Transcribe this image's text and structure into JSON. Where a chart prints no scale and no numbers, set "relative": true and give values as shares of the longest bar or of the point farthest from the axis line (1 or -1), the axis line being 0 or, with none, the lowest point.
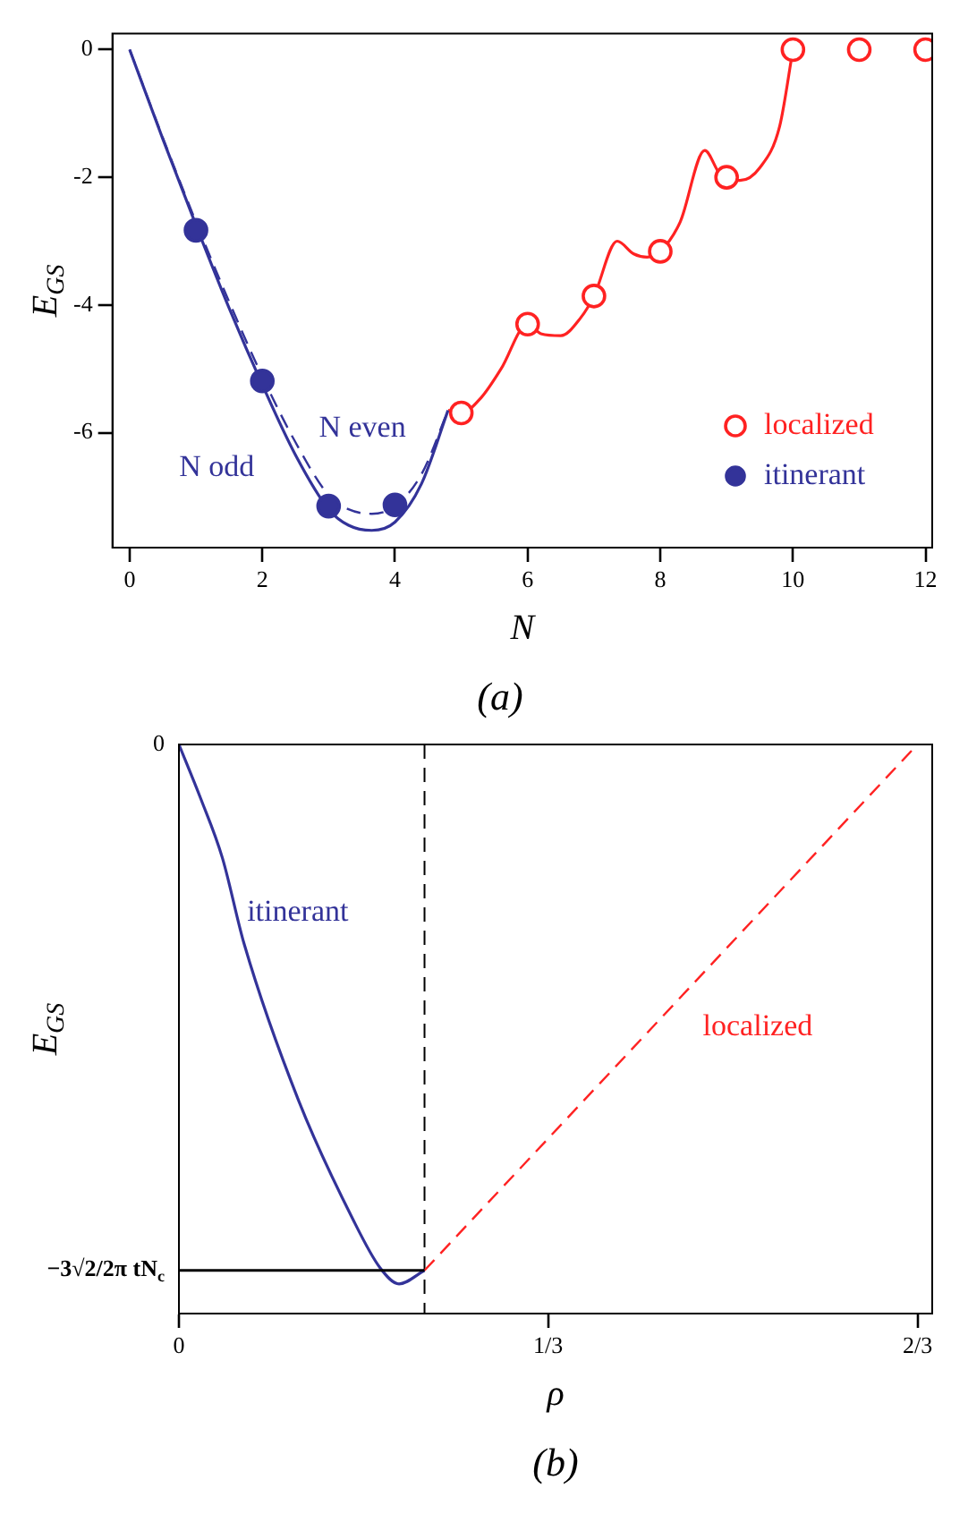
{
  "chart_data": [
    {
      "type": "scatter",
      "title": "(a)",
      "xlabel": "N",
      "ylabel": "E$_{GS}$",
      "xlim": [
        -0.26,
        12.1
      ],
      "ylim": [
        -7.8,
        0.25
      ],
      "xticks": [
        0,
        2,
        4,
        6,
        8,
        10,
        12
      ],
      "yticks": [
        -6,
        -4,
        -2,
        0
      ],
      "grid": false,
      "legend": "bottom right",
      "series": [
        {
          "name": "N odd",
          "type": "line",
          "color": "#333399",
          "marker": "none",
          "line_style": "solid",
          "x": [
            0,
            0.5,
            1,
            1.5,
            2,
            2.5,
            3,
            3.3,
            3.65,
            4,
            4.4,
            4.8
          ],
          "values": [
            0,
            -1.4,
            -2.75,
            -4.05,
            -5.25,
            -6.35,
            -7.2,
            -7.45,
            -7.53,
            -7.4,
            -6.8,
            -5.65
          ]
        },
        {
          "name": "N even",
          "type": "line",
          "color": "#333399",
          "marker": "none",
          "line_style": "dashed",
          "x": [
            0,
            0.5,
            1,
            1.5,
            2,
            2.5,
            3,
            3.3,
            3.65,
            4,
            4.4,
            4.8
          ],
          "values": [
            0,
            -1.38,
            -2.7,
            -3.95,
            -5.12,
            -6.15,
            -6.98,
            -7.2,
            -7.27,
            -7.15,
            -6.65,
            -5.65
          ]
        },
        {
          "type": "line",
          "color": "#ff2222",
          "marker": "none",
          "line_style": "solid",
          "x": [
            4.8,
            5,
            5.3,
            5.6,
            6,
            6.2,
            6.5,
            6.8,
            7,
            7.35,
            7.6,
            7.8,
            8,
            8.3,
            8.67,
            8.9,
            9,
            9.2,
            9.5,
            9.8,
            10
          ],
          "values": [
            -5.65,
            -5.69,
            -5.45,
            -5.0,
            -4.3,
            -4.45,
            -4.48,
            -4.2,
            -3.86,
            -3.0,
            -3.2,
            -3.25,
            -3.16,
            -2.7,
            -1.58,
            -1.95,
            -2.0,
            -2.05,
            -1.85,
            -1.2,
            0
          ]
        },
        {
          "name": "localized",
          "color": "#ff2222",
          "marker": "circle",
          "x": [
            5,
            6,
            7,
            8,
            9,
            10,
            11,
            12
          ],
          "values": [
            -5.69,
            -4.3,
            -3.86,
            -3.16,
            -2.0,
            0,
            0,
            0
          ]
        },
        {
          "name": "itinerant",
          "color": "#333399",
          "marker": "circle",
          "x": [
            1,
            2,
            3,
            4
          ],
          "values": [
            -2.83,
            -5.19,
            -7.15,
            -7.13
          ]
        }
      ]
    },
    {
      "type": "line",
      "title": "(b)",
      "xlabel": "ρ",
      "ylabel": "E$_{GS}$",
      "xlim": [
        0,
        0.68
      ],
      "relative": true,
      "xticks": [
        0,
        {
          "value": 0.3333,
          "label": "1/3"
        },
        {
          "value": 0.6667,
          "label": "2/3"
        }
      ],
      "annotations": [
        {
          "text": "0",
          "x": 0,
          "y": 0
        },
        {
          "text": "−3√2/2π tN$_{c}$",
          "x": 0,
          "y": -0.975
        }
      ],
      "grid": false,
      "ref_lines": [
        {
          "axis": "x",
          "value": 0.2217,
          "color": "#000000",
          "line_style": "dashed"
        }
      ],
      "series": [
        {
          "color": "#000000",
          "marker": "none",
          "line_style": "solid",
          "x": [
            0,
            0.2217
          ],
          "values": [
            -0.975,
            -0.975
          ]
        },
        {
          "name": "itinerant",
          "color": "#333399",
          "marker": "none",
          "line_style": "solid",
          "x": [
            0,
            0.0196,
            0.0392,
            0.0589,
            0.108,
            0.157,
            0.1815,
            0.1987,
            0.2217
          ],
          "values": [
            0,
            -0.1,
            -0.21,
            -0.37,
            -0.66,
            -0.88,
            -0.97,
            -1,
            -0.975
          ]
        },
        {
          "name": "localized",
          "color": "#ff2222",
          "marker": "none",
          "line_style": "dashed",
          "x": [
            0.2217,
            0.6667
          ],
          "values": [
            -0.975,
            0
          ]
        }
      ]
    }
  ]
}
